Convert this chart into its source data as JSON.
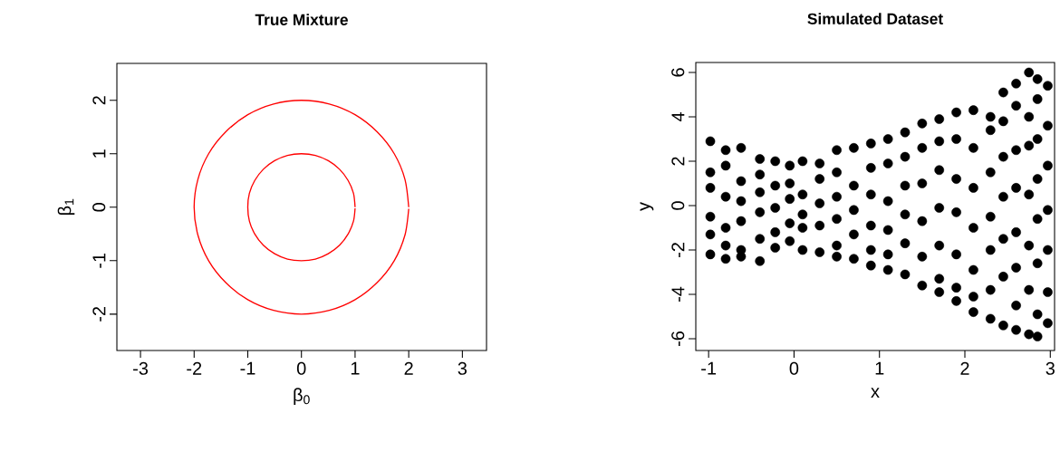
{
  "chart_data": [
    {
      "type": "line",
      "title": "True Mixture",
      "xlabel": "β$_{0}$",
      "ylabel": "β$_{1}$",
      "xlim": [
        -3.44,
        3.45
      ],
      "ylim": [
        -2.68,
        2.69
      ],
      "xticks": [
        -3,
        -2,
        -1,
        0,
        1,
        2,
        3
      ],
      "yticks": [
        -2,
        -1,
        0,
        1,
        2
      ],
      "grid": false,
      "marker": "none",
      "line_style": "solid",
      "series": [
        {
          "color": "#ff0000",
          "x": [
            1,
            0.97,
            0.87,
            0.71,
            0.5,
            0.26,
            0,
            -0.26,
            -0.5,
            -0.71,
            -0.87,
            -0.97,
            -1,
            -0.97,
            -0.87,
            -0.71,
            -0.5,
            -0.26,
            0,
            0.26,
            0.5,
            0.71,
            0.87,
            0.97,
            1
          ],
          "values": [
            0,
            0.26,
            0.5,
            0.71,
            0.87,
            0.97,
            1,
            0.97,
            0.87,
            0.71,
            0.5,
            0.26,
            0,
            -0.26,
            -0.5,
            -0.71,
            -0.87,
            -0.97,
            -1,
            -0.97,
            -0.87,
            -0.71,
            -0.5,
            -0.26,
            -0.02
          ]
        },
        {
          "color": "#ff0000",
          "x": [
            2,
            1.93,
            1.73,
            1.41,
            1,
            0.52,
            0,
            -0.52,
            -1,
            -1.41,
            -1.73,
            -1.93,
            -2,
            -1.93,
            -1.73,
            -1.41,
            -1,
            -0.52,
            0,
            0.52,
            1,
            1.41,
            1.73,
            1.93,
            2
          ],
          "values": [
            0,
            0.52,
            1,
            1.41,
            1.73,
            1.93,
            2,
            1.93,
            1.73,
            1.41,
            1,
            0.52,
            0,
            -0.52,
            -1,
            -1.41,
            -1.73,
            -1.93,
            -2,
            -1.93,
            -1.73,
            -1.41,
            -1,
            -0.52,
            -0.03
          ]
        }
      ]
    },
    {
      "type": "scatter",
      "title": "Simulated Dataset",
      "xlabel": "x",
      "ylabel": "y",
      "xlim": [
        -1.15,
        3.05
      ],
      "ylim": [
        -6.53,
        6.45
      ],
      "xticks": [
        -1,
        0,
        1,
        2,
        3
      ],
      "yticks": [
        -6,
        -4,
        -2,
        0,
        2,
        4,
        6
      ],
      "grid": false,
      "marker": "circle",
      "series": [
        {
          "color": "#000000",
          "x": [
            -0.98,
            -0.98,
            -0.98,
            -0.98,
            -0.98,
            -0.98,
            -0.8,
            -0.8,
            -0.8,
            -0.8,
            -0.8,
            -0.8,
            -0.62,
            -0.62,
            -0.62,
            -0.62,
            -0.62,
            -0.62,
            -0.4,
            -0.4,
            -0.4,
            -0.4,
            -0.4,
            -0.4,
            -0.22,
            -0.22,
            -0.22,
            -0.22,
            -0.22,
            -0.05,
            -0.05,
            -0.05,
            -0.05,
            -0.05,
            0.1,
            0.1,
            0.1,
            0.1,
            0.1,
            0.3,
            0.3,
            0.3,
            0.3,
            0.3,
            0.5,
            0.5,
            0.5,
            0.5,
            0.5,
            0.5,
            0.7,
            0.7,
            0.7,
            0.7,
            0.7,
            0.9,
            0.9,
            0.9,
            0.9,
            0.9,
            0.9,
            1.1,
            1.1,
            1.1,
            1.1,
            1.1,
            1.1,
            1.3,
            1.3,
            1.3,
            1.3,
            1.3,
            1.3,
            1.5,
            1.5,
            1.5,
            1.5,
            1.5,
            1.5,
            1.7,
            1.7,
            1.7,
            1.7,
            1.7,
            1.7,
            1.7,
            1.9,
            1.9,
            1.9,
            1.9,
            1.9,
            1.9,
            1.9,
            2.1,
            2.1,
            2.1,
            2.1,
            2.1,
            2.1,
            2.1,
            2.3,
            2.3,
            2.3,
            2.3,
            2.3,
            2.3,
            2.3,
            2.45,
            2.45,
            2.45,
            2.45,
            2.45,
            2.45,
            2.45,
            2.6,
            2.6,
            2.6,
            2.6,
            2.6,
            2.6,
            2.6,
            2.6,
            2.75,
            2.75,
            2.75,
            2.75,
            2.75,
            2.75,
            2.75,
            2.85,
            2.85,
            2.85,
            2.85,
            2.85,
            2.85,
            2.85,
            2.85,
            2.97,
            2.97,
            2.97,
            2.97,
            2.97,
            2.97,
            2.97
          ],
          "values": [
            2.9,
            1.5,
            0.8,
            -0.5,
            -1.3,
            -2.2,
            2.5,
            1.8,
            0.4,
            -1.0,
            -1.8,
            -2.4,
            2.6,
            1.1,
            0.2,
            -0.7,
            -2.0,
            -2.3,
            2.1,
            1.4,
            0.6,
            -0.3,
            -1.5,
            -2.5,
            2.0,
            0.9,
            -0.1,
            -1.2,
            -1.9,
            1.8,
            1.0,
            0.3,
            -0.8,
            -1.6,
            2.0,
            0.5,
            -0.4,
            -1.0,
            -2.0,
            1.9,
            1.2,
            0.1,
            -0.9,
            -2.1,
            2.5,
            1.5,
            0.4,
            -0.6,
            -1.8,
            -2.3,
            2.6,
            0.9,
            -0.2,
            -1.3,
            -2.4,
            2.8,
            1.7,
            0.5,
            -0.9,
            -2.0,
            -2.7,
            3.0,
            1.9,
            0.2,
            -1.1,
            -2.2,
            -2.9,
            3.3,
            2.2,
            0.9,
            -0.4,
            -1.7,
            -3.1,
            3.7,
            2.6,
            1.0,
            -0.7,
            -2.3,
            -3.6,
            3.9,
            2.9,
            1.6,
            -0.1,
            -1.8,
            -3.3,
            -3.9,
            4.2,
            3.0,
            1.2,
            -0.3,
            -2.2,
            -3.7,
            -4.3,
            4.3,
            2.6,
            0.8,
            -1.0,
            -2.9,
            -4.1,
            -4.8,
            4.0,
            3.4,
            1.5,
            -0.5,
            -2.0,
            -3.8,
            -5.1,
            5.1,
            3.8,
            2.2,
            0.4,
            -1.5,
            -3.2,
            -5.4,
            5.5,
            4.5,
            2.5,
            0.8,
            -1.2,
            -2.8,
            -4.5,
            -5.6,
            6.0,
            4.0,
            2.7,
            0.5,
            -1.8,
            -3.8,
            -5.8,
            5.7,
            4.8,
            3.0,
            1.2,
            -0.6,
            -2.6,
            -4.9,
            -5.9,
            5.4,
            3.6,
            1.8,
            -0.2,
            -2.0,
            -3.9,
            -5.3
          ]
        }
      ]
    }
  ]
}
